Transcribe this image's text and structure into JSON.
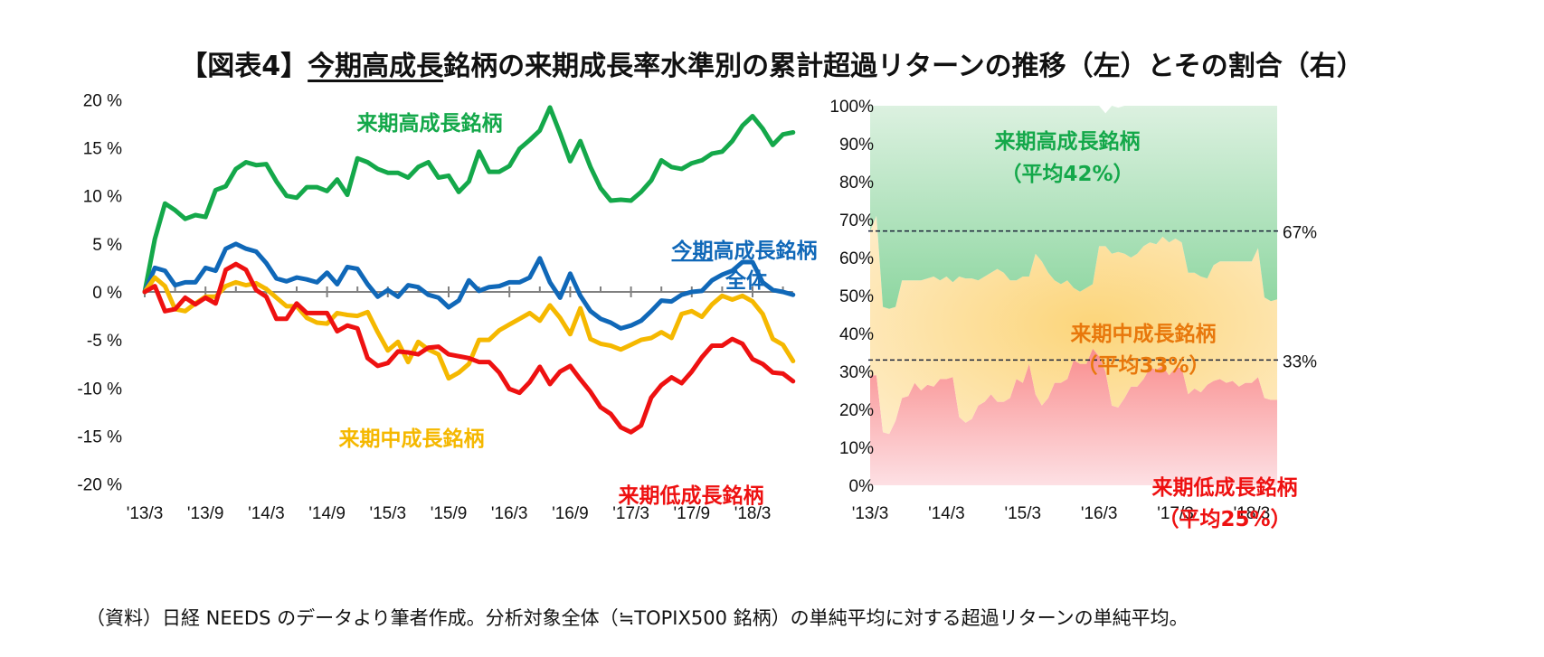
{
  "title": {
    "prefix": "【図表4】",
    "underlined": "今期高成長",
    "rest": "銘柄の来期成長率水準別の累計超過リターンの推移（左）とその割合（右）"
  },
  "footnote": "（資料）日経 NEEDS のデータより筆者作成。分析対象全体（≒TOPIX500 銘柄）の単純平均に対する超過リターンの単純平均。",
  "colors": {
    "high": "#14a84a",
    "mid": "#f5b800",
    "low": "#ee1111",
    "all": "#1068b8",
    "mid_label_right": "#e8780c",
    "axis": "#808080"
  },
  "chart_data": [
    {
      "type": "line",
      "title": "累計超過リターンの推移（左）",
      "xlabel": "",
      "ylabel": "",
      "ylim": [
        -20,
        20
      ],
      "yticks": [
        20,
        15,
        10,
        5,
        0,
        -5,
        -10,
        -15,
        -20
      ],
      "ytick_labels": [
        "20 %",
        "15 %",
        "10 %",
        "5 %",
        "0 %",
        "-5 %",
        "-10 %",
        "-15 %",
        "-20 %"
      ],
      "xtick_labels": [
        "'13/3",
        "'13/9",
        "'14/3",
        "'14/9",
        "'15/3",
        "'15/9",
        "'16/3",
        "'16/9",
        "'17/3",
        "'17/9",
        "'18/3"
      ],
      "x_start": "'13/3",
      "months": 65,
      "grid": false,
      "series": [
        {
          "name": "来期高成長銘柄",
          "key": "high",
          "values": [
            0,
            5.5,
            9.2,
            8.5,
            7.6,
            8.0,
            7.8,
            10.6,
            11.0,
            12.8,
            13.5,
            13.2,
            13.3,
            11.5,
            10.0,
            9.8,
            10.9,
            10.9,
            10.5,
            11.7,
            10.1,
            13.9,
            13.5,
            12.8,
            12.4,
            12.4,
            11.9,
            13.0,
            13.5,
            11.9,
            12.1,
            10.4,
            11.5,
            14.6,
            12.5,
            12.5,
            13.1,
            14.9,
            15.8,
            16.8,
            19.2,
            16.5,
            13.6,
            15.7,
            13.0,
            10.8,
            9.5,
            9.6,
            9.5,
            10.4,
            11.6,
            13.7,
            13.0,
            12.8,
            13.4,
            13.7,
            14.4,
            14.6,
            15.7,
            17.3,
            18.3,
            17.0,
            15.3,
            16.4,
            16.6
          ]
        },
        {
          "name": "今期高成長銘柄全体",
          "key": "all",
          "values": [
            0,
            2.5,
            2.2,
            0.7,
            1.0,
            1.0,
            2.5,
            2.2,
            4.5,
            5.0,
            4.5,
            4.2,
            3.0,
            1.4,
            1.1,
            1.5,
            1.3,
            1.0,
            2.0,
            0.8,
            2.6,
            2.4,
            0.8,
            -0.5,
            0.2,
            -0.5,
            0.7,
            0.5,
            -0.3,
            -0.6,
            -1.6,
            -0.9,
            1.2,
            0.1,
            0.5,
            0.6,
            1.0,
            1.0,
            1.5,
            3.5,
            1.0,
            -0.6,
            1.9,
            -0.4,
            -2.0,
            -2.8,
            -3.2,
            -3.8,
            -3.5,
            -3.0,
            -2.0,
            -0.9,
            -1.0,
            -0.3,
            0.0,
            0.1,
            1.2,
            1.8,
            2.2,
            3.1,
            3.1,
            1.0,
            0.2,
            0.0,
            -0.3
          ]
        },
        {
          "name": "来期中成長銘柄",
          "key": "mid",
          "values": [
            0,
            1.5,
            0.6,
            -1.8,
            -2.0,
            -1.2,
            -0.5,
            -0.5,
            0.6,
            1.0,
            0.7,
            0.9,
            0.3,
            -0.6,
            -1.5,
            -1.5,
            -2.7,
            -3.2,
            -3.3,
            -2.2,
            -2.4,
            -2.5,
            -2.1,
            -4.2,
            -6.1,
            -5.2,
            -7.3,
            -5.2,
            -6.0,
            -6.5,
            -9.0,
            -8.4,
            -7.5,
            -5.0,
            -5.0,
            -4.0,
            -3.4,
            -2.8,
            -2.2,
            -3.0,
            -1.4,
            -2.7,
            -4.4,
            -1.7,
            -4.9,
            -5.4,
            -5.6,
            -6.0,
            -5.5,
            -5.0,
            -4.8,
            -4.2,
            -4.8,
            -2.3,
            -2.0,
            -2.6,
            -1.3,
            -0.4,
            -0.8,
            -0.4,
            -1.0,
            -2.3,
            -4.9,
            -5.5,
            -7.2
          ]
        },
        {
          "name": "来期低成長銘柄",
          "key": "low",
          "values": [
            0,
            0.6,
            -2.0,
            -1.8,
            -0.6,
            -1.3,
            -0.6,
            -1.2,
            2.3,
            2.9,
            2.3,
            0.2,
            -0.5,
            -2.8,
            -2.8,
            -1.2,
            -2.2,
            -2.2,
            -2.2,
            -4.1,
            -3.5,
            -3.8,
            -6.9,
            -7.7,
            -7.4,
            -6.2,
            -6.3,
            -6.5,
            -5.8,
            -5.7,
            -6.5,
            -6.7,
            -6.9,
            -7.3,
            -7.3,
            -8.4,
            -10.1,
            -10.5,
            -9.4,
            -7.8,
            -9.6,
            -8.3,
            -7.7,
            -9.1,
            -10.4,
            -12.0,
            -12.7,
            -14.1,
            -14.6,
            -13.9,
            -11.0,
            -9.7,
            -8.9,
            -9.5,
            -8.3,
            -6.8,
            -5.6,
            -5.6,
            -4.9,
            -5.4,
            -7.0,
            -7.5,
            -8.4,
            -8.5,
            -9.3
          ]
        }
      ],
      "annotations": [
        {
          "text": "来期高成長銘柄",
          "series": "high"
        },
        {
          "text_underlined": "今期",
          "text": "高成長銘柄",
          "text2": "全体",
          "series": "all"
        },
        {
          "text": "来期中成長銘柄",
          "series": "mid"
        },
        {
          "text": "来期低成長銘柄",
          "series": "low"
        }
      ]
    },
    {
      "type": "area",
      "stacked": true,
      "title": "その割合（右）",
      "ylim": [
        0,
        100
      ],
      "yticks": [
        100,
        90,
        80,
        70,
        60,
        50,
        40,
        30,
        20,
        10,
        0
      ],
      "ytick_labels": [
        "100%",
        "90%",
        "80%",
        "70%",
        "60%",
        "50%",
        "40%",
        "30%",
        "20%",
        "10%",
        "0%"
      ],
      "xtick_labels": [
        "'13/3",
        "'14/3",
        "'15/3",
        "'16/3",
        "'17/3",
        "'18/3"
      ],
      "x_start": "'13/3",
      "months": 65,
      "reference_lines": [
        {
          "value": 67,
          "label": "67%"
        },
        {
          "value": 33,
          "label": "33%"
        }
      ],
      "series": [
        {
          "name": "来期低成長銘柄",
          "key": "low",
          "average_label": "（平均25%）",
          "values": [
            29,
            29,
            14,
            13.5,
            17,
            23,
            23.5,
            27,
            25,
            26.5,
            26,
            28,
            28,
            28.5,
            18,
            16.5,
            17.5,
            21,
            22,
            24,
            22,
            22,
            23,
            28,
            27,
            32,
            24,
            21,
            23,
            27,
            27,
            28,
            33,
            32,
            32,
            36,
            34,
            30,
            21,
            20.5,
            23,
            26,
            26,
            28,
            31,
            30.5,
            31.5,
            29,
            31,
            31,
            24,
            25.5,
            24.5,
            26.5,
            27.5,
            28,
            27,
            27.5,
            26,
            27,
            27,
            28.5,
            23,
            22.5,
            22.5
          ]
        },
        {
          "name": "来期中成長銘柄",
          "key": "mid",
          "average_label": "（平均33%）",
          "values": [
            38,
            42,
            33,
            33,
            30,
            31,
            30.5,
            27,
            29,
            28,
            29,
            26,
            27,
            25,
            37,
            38,
            37,
            33,
            33,
            32,
            35,
            34,
            31,
            26,
            28,
            23,
            37,
            38,
            33,
            27,
            26,
            26,
            19,
            19,
            20,
            17,
            29,
            33,
            40,
            41,
            38,
            34,
            35,
            35,
            33,
            33,
            34,
            35,
            34,
            33,
            32,
            30.5,
            30.5,
            28,
            30.5,
            31,
            32,
            31.5,
            33,
            32,
            32,
            34,
            26.5,
            26,
            26.5
          ]
        },
        {
          "name": "来期高成長銘柄",
          "key": "high",
          "average_label": "（平均42%）",
          "values": [
            33,
            29,
            53,
            53.5,
            53,
            46,
            46,
            46,
            46,
            45.5,
            45,
            46,
            45,
            46.5,
            45,
            45.5,
            45.5,
            46,
            45,
            44,
            43,
            44,
            46,
            46,
            45,
            45,
            39,
            41,
            44,
            46,
            47,
            46,
            48,
            49,
            48,
            47,
            37,
            35,
            39,
            38,
            39,
            40,
            39,
            37,
            36,
            36.5,
            34.5,
            36,
            35,
            36,
            44,
            44,
            45,
            45.5,
            42,
            41,
            41,
            41,
            41,
            41,
            41,
            37.5,
            50.5,
            51.5,
            51
          ]
        }
      ]
    }
  ]
}
